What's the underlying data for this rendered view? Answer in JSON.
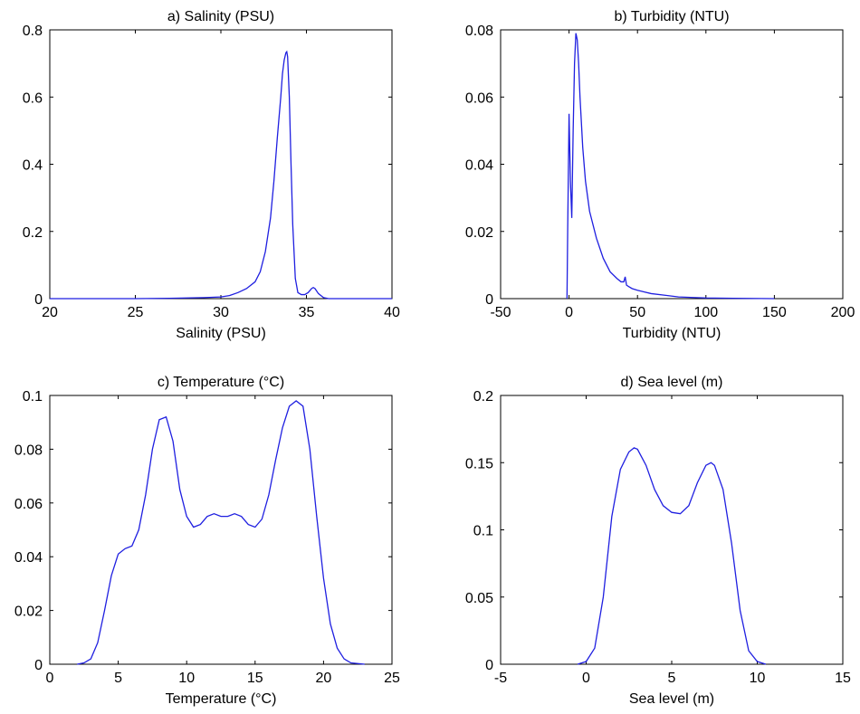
{
  "colors": {
    "line": "#1f1fe0",
    "axes": "#000000",
    "background": "#ffffff"
  },
  "chart_data": [
    {
      "type": "line",
      "title": "a) Salinity (PSU)",
      "xlabel": "Salinity (PSU)",
      "ylabel": "",
      "xlim": [
        20,
        40
      ],
      "ylim": [
        0,
        0.8
      ],
      "xticks": [
        20,
        25,
        30,
        35,
        40
      ],
      "yticks": [
        0,
        0.2,
        0.4,
        0.6,
        0.8
      ],
      "xtick_labels": [
        "20",
        "25",
        "30",
        "35",
        "40"
      ],
      "ytick_labels": [
        "0",
        "0.2",
        "0.4",
        "0.6",
        "0.8"
      ],
      "grid": false,
      "series": [
        {
          "x": [
            20,
            25,
            27,
            28,
            29,
            30,
            30.5,
            31,
            31.5,
            32,
            32.3,
            32.6,
            32.9,
            33.1,
            33.3,
            33.5,
            33.6,
            33.7,
            33.8,
            33.85,
            33.9,
            34.0,
            34.1,
            34.2,
            34.35,
            34.5,
            34.7,
            34.9,
            35.1,
            35.3,
            35.4,
            35.5,
            35.7,
            36.0,
            36.3,
            40
          ],
          "y": [
            0,
            0,
            0.001,
            0.002,
            0.003,
            0.005,
            0.009,
            0.018,
            0.03,
            0.05,
            0.08,
            0.14,
            0.24,
            0.35,
            0.48,
            0.6,
            0.67,
            0.71,
            0.732,
            0.735,
            0.72,
            0.6,
            0.4,
            0.22,
            0.06,
            0.018,
            0.012,
            0.012,
            0.018,
            0.03,
            0.033,
            0.03,
            0.015,
            0.003,
            0.0,
            0.0
          ]
        }
      ]
    },
    {
      "type": "line",
      "title": "b) Turbidity (NTU)",
      "xlabel": "Turbidity (NTU)",
      "ylabel": "",
      "xlim": [
        -50,
        200
      ],
      "ylim": [
        0,
        0.08
      ],
      "xticks": [
        -50,
        0,
        50,
        100,
        150,
        200
      ],
      "yticks": [
        0,
        0.02,
        0.04,
        0.06,
        0.08
      ],
      "xtick_labels": [
        "-50",
        "0",
        "50",
        "100",
        "150",
        "200"
      ],
      "ytick_labels": [
        "0",
        "0.02",
        "0.04",
        "0.06",
        "0.08"
      ],
      "grid": false,
      "series": [
        {
          "x": [
            -1.5,
            -1,
            0,
            0.5,
            1,
            2,
            3,
            4,
            5,
            6,
            7,
            8,
            10,
            12,
            15,
            20,
            25,
            30,
            35,
            38,
            40,
            41,
            42,
            44,
            46,
            50,
            55,
            60,
            70,
            80,
            100,
            120,
            150
          ],
          "y": [
            0,
            0.02,
            0.055,
            0.045,
            0.035,
            0.024,
            0.05,
            0.07,
            0.079,
            0.077,
            0.07,
            0.06,
            0.045,
            0.035,
            0.026,
            0.018,
            0.012,
            0.008,
            0.006,
            0.005,
            0.005,
            0.0065,
            0.004,
            0.0035,
            0.003,
            0.0025,
            0.002,
            0.0015,
            0.001,
            0.0005,
            0.0002,
            0.0001,
            0.0
          ]
        }
      ]
    },
    {
      "type": "line",
      "title": "c) Temperature (°C)",
      "xlabel": "Temperature (°C)",
      "ylabel": "",
      "xlim": [
        0,
        25
      ],
      "ylim": [
        0,
        0.1
      ],
      "xticks": [
        0,
        5,
        10,
        15,
        20,
        25
      ],
      "yticks": [
        0,
        0.02,
        0.04,
        0.06,
        0.08,
        0.1
      ],
      "xtick_labels": [
        "0",
        "5",
        "10",
        "15",
        "20",
        "25"
      ],
      "ytick_labels": [
        "0",
        "0.02",
        "0.04",
        "0.06",
        "0.08",
        "0.1"
      ],
      "grid": false,
      "series": [
        {
          "x": [
            2,
            2.5,
            3,
            3.5,
            4,
            4.5,
            5,
            5.5,
            6,
            6.5,
            7,
            7.5,
            8,
            8.5,
            9,
            9.5,
            10,
            10.5,
            11,
            11.5,
            12,
            12.5,
            13,
            13.5,
            14,
            14.5,
            15,
            15.5,
            16,
            16.5,
            17,
            17.5,
            18,
            18.5,
            19,
            19.5,
            20,
            20.5,
            21,
            21.5,
            22,
            23
          ],
          "y": [
            0,
            0.0005,
            0.002,
            0.008,
            0.02,
            0.033,
            0.041,
            0.043,
            0.044,
            0.05,
            0.063,
            0.08,
            0.091,
            0.092,
            0.083,
            0.065,
            0.055,
            0.051,
            0.052,
            0.055,
            0.056,
            0.055,
            0.055,
            0.056,
            0.055,
            0.052,
            0.051,
            0.054,
            0.063,
            0.076,
            0.088,
            0.096,
            0.098,
            0.096,
            0.08,
            0.055,
            0.032,
            0.015,
            0.006,
            0.002,
            0.0005,
            0.0
          ]
        }
      ]
    },
    {
      "type": "line",
      "title": "d) Sea level (m)",
      "xlabel": "Sea level (m)",
      "ylabel": "",
      "xlim": [
        -5,
        15
      ],
      "ylim": [
        0,
        0.2
      ],
      "xticks": [
        -5,
        0,
        5,
        10,
        15
      ],
      "yticks": [
        0,
        0.05,
        0.1,
        0.15,
        0.2
      ],
      "xtick_labels": [
        "-5",
        "0",
        "5",
        "10",
        "15"
      ],
      "ytick_labels": [
        "0",
        "0.05",
        "0.1",
        "0.15",
        "0.2"
      ],
      "grid": false,
      "series": [
        {
          "x": [
            -0.5,
            0,
            0.5,
            1,
            1.5,
            2,
            2.5,
            2.8,
            3,
            3.5,
            4,
            4.5,
            5,
            5.5,
            6,
            6.5,
            7,
            7.3,
            7.5,
            8,
            8.5,
            9,
            9.5,
            10,
            10.5
          ],
          "y": [
            0,
            0.002,
            0.012,
            0.05,
            0.11,
            0.145,
            0.158,
            0.161,
            0.16,
            0.148,
            0.13,
            0.118,
            0.113,
            0.112,
            0.118,
            0.135,
            0.148,
            0.15,
            0.148,
            0.13,
            0.09,
            0.04,
            0.01,
            0.002,
            0.0
          ]
        }
      ]
    }
  ]
}
